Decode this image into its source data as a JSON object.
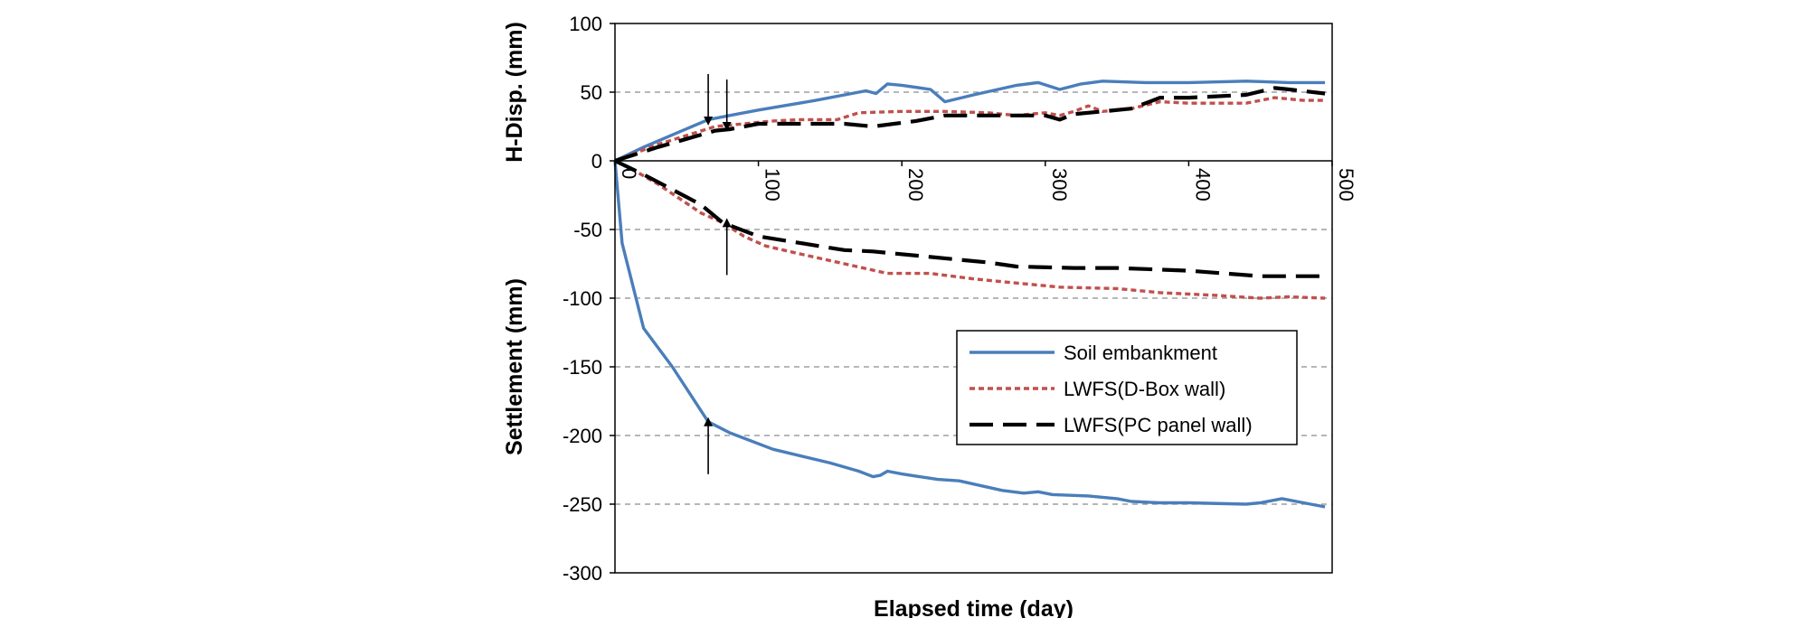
{
  "chart_data": {
    "type": "line",
    "title": "",
    "xlabel": "Elapsed time (day)",
    "ylabel_upper": "H-Disp. (mm)",
    "ylabel_lower": "Settlement (mm)",
    "xlim": [
      0,
      500
    ],
    "ylim": [
      -300,
      100
    ],
    "x_ticks": [
      0,
      100,
      200,
      300,
      400,
      500
    ],
    "y_ticks": [
      100,
      50,
      0,
      -50,
      -100,
      -150,
      -200,
      -250,
      -300
    ],
    "grid": "horizontal dashed",
    "legend_position": "right-middle",
    "series": [
      {
        "name": "Soil embankment",
        "style": "solid",
        "color": "#4a7ebb",
        "h_disp": [
          [
            0,
            0
          ],
          [
            20,
            10
          ],
          [
            65,
            30
          ],
          [
            80,
            33
          ],
          [
            100,
            37
          ],
          [
            140,
            44
          ],
          [
            175,
            51
          ],
          [
            182,
            49
          ],
          [
            190,
            56
          ],
          [
            200,
            55
          ],
          [
            220,
            52
          ],
          [
            230,
            43
          ],
          [
            250,
            48
          ],
          [
            280,
            55
          ],
          [
            295,
            57
          ],
          [
            310,
            52
          ],
          [
            325,
            56
          ],
          [
            340,
            58
          ],
          [
            370,
            57
          ],
          [
            400,
            57
          ],
          [
            440,
            58
          ],
          [
            470,
            57
          ],
          [
            495,
            57
          ]
        ],
        "settlement": [
          [
            0,
            0
          ],
          [
            5,
            -60
          ],
          [
            20,
            -122
          ],
          [
            40,
            -150
          ],
          [
            65,
            -190
          ],
          [
            80,
            -198
          ],
          [
            110,
            -210
          ],
          [
            150,
            -220
          ],
          [
            170,
            -226
          ],
          [
            175,
            -228
          ],
          [
            180,
            -230
          ],
          [
            185,
            -229
          ],
          [
            190,
            -226
          ],
          [
            200,
            -228
          ],
          [
            225,
            -232
          ],
          [
            240,
            -233
          ],
          [
            270,
            -240
          ],
          [
            285,
            -242
          ],
          [
            295,
            -241
          ],
          [
            305,
            -243
          ],
          [
            330,
            -244
          ],
          [
            350,
            -246
          ],
          [
            360,
            -248
          ],
          [
            380,
            -249
          ],
          [
            400,
            -249
          ],
          [
            440,
            -250
          ],
          [
            450,
            -249
          ],
          [
            465,
            -246
          ],
          [
            480,
            -249
          ],
          [
            495,
            -252
          ]
        ]
      },
      {
        "name": "LWFS(D-Box wall)",
        "style": "dotted",
        "color": "#c0504d",
        "h_disp": [
          [
            0,
            0
          ],
          [
            30,
            12
          ],
          [
            70,
            25
          ],
          [
            90,
            27
          ],
          [
            110,
            29
          ],
          [
            130,
            30
          ],
          [
            155,
            30
          ],
          [
            170,
            35
          ],
          [
            200,
            36
          ],
          [
            230,
            36
          ],
          [
            260,
            35
          ],
          [
            280,
            33
          ],
          [
            300,
            35
          ],
          [
            310,
            33
          ],
          [
            320,
            36
          ],
          [
            330,
            40
          ],
          [
            340,
            36
          ],
          [
            360,
            38
          ],
          [
            380,
            43
          ],
          [
            400,
            42
          ],
          [
            440,
            42
          ],
          [
            460,
            46
          ],
          [
            480,
            44
          ],
          [
            495,
            44
          ]
        ],
        "settlement": [
          [
            0,
            0
          ],
          [
            10,
            -5
          ],
          [
            30,
            -17
          ],
          [
            60,
            -38
          ],
          [
            75,
            -45
          ],
          [
            90,
            -55
          ],
          [
            105,
            -62
          ],
          [
            130,
            -68
          ],
          [
            160,
            -75
          ],
          [
            190,
            -82
          ],
          [
            220,
            -82
          ],
          [
            250,
            -86
          ],
          [
            280,
            -89
          ],
          [
            310,
            -92
          ],
          [
            350,
            -93
          ],
          [
            380,
            -96
          ],
          [
            420,
            -98
          ],
          [
            450,
            -100
          ],
          [
            470,
            -99
          ],
          [
            495,
            -100
          ]
        ]
      },
      {
        "name": "LWFS(PC panel wall)",
        "style": "dashed",
        "color": "#000000",
        "h_disp": [
          [
            0,
            0
          ],
          [
            30,
            10
          ],
          [
            70,
            22
          ],
          [
            80,
            23
          ],
          [
            100,
            27
          ],
          [
            120,
            27
          ],
          [
            160,
            27
          ],
          [
            180,
            25
          ],
          [
            210,
            29
          ],
          [
            230,
            33
          ],
          [
            260,
            33
          ],
          [
            280,
            33
          ],
          [
            300,
            33
          ],
          [
            310,
            30
          ],
          [
            320,
            34
          ],
          [
            340,
            36
          ],
          [
            360,
            38
          ],
          [
            380,
            46
          ],
          [
            400,
            46
          ],
          [
            440,
            48
          ],
          [
            460,
            53
          ],
          [
            470,
            52
          ],
          [
            495,
            49
          ]
        ],
        "settlement": [
          [
            0,
            0
          ],
          [
            20,
            -10
          ],
          [
            60,
            -32
          ],
          [
            75,
            -45
          ],
          [
            100,
            -55
          ],
          [
            130,
            -60
          ],
          [
            160,
            -65
          ],
          [
            180,
            -66
          ],
          [
            220,
            -70
          ],
          [
            260,
            -74
          ],
          [
            280,
            -77
          ],
          [
            320,
            -78
          ],
          [
            350,
            -78
          ],
          [
            400,
            -80
          ],
          [
            450,
            -84
          ],
          [
            495,
            -84
          ]
        ]
      }
    ],
    "annotations": [
      {
        "type": "arrow",
        "direction": "down",
        "x": 65,
        "target_y": 29,
        "series": "Soil embankment"
      },
      {
        "type": "arrow",
        "direction": "down",
        "x": 78,
        "target_y": 25,
        "series": "LWFS"
      },
      {
        "type": "arrow",
        "direction": "up",
        "x": 78,
        "target_y": -45,
        "series": "LWFS"
      },
      {
        "type": "arrow",
        "direction": "up",
        "x": 65,
        "target_y": -190,
        "series": "Soil embankment"
      }
    ]
  }
}
